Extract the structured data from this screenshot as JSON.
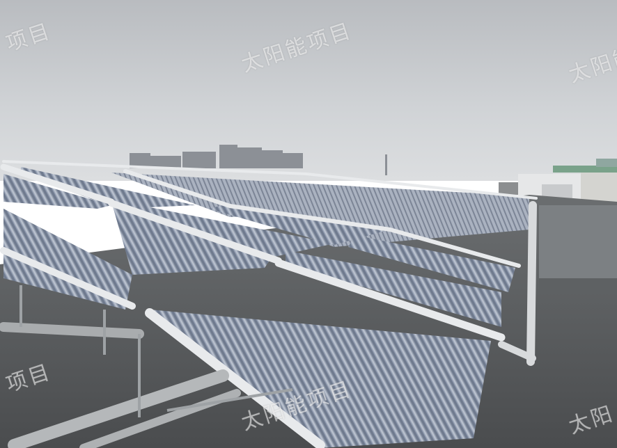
{
  "photo": {
    "subject": "rooftop-solar-water-heater-array",
    "colors": {
      "sky": "#c9ccd0",
      "roof": "#5e6163",
      "frame": "#e4e6e8",
      "tube": "#9aa4b4"
    }
  },
  "watermarks": [
    {
      "text": "项目"
    },
    {
      "text": "太阳能项目"
    },
    {
      "text": "太阳能"
    },
    {
      "text": "项目"
    },
    {
      "text": "太阳能项目"
    },
    {
      "text": "太阳"
    }
  ]
}
